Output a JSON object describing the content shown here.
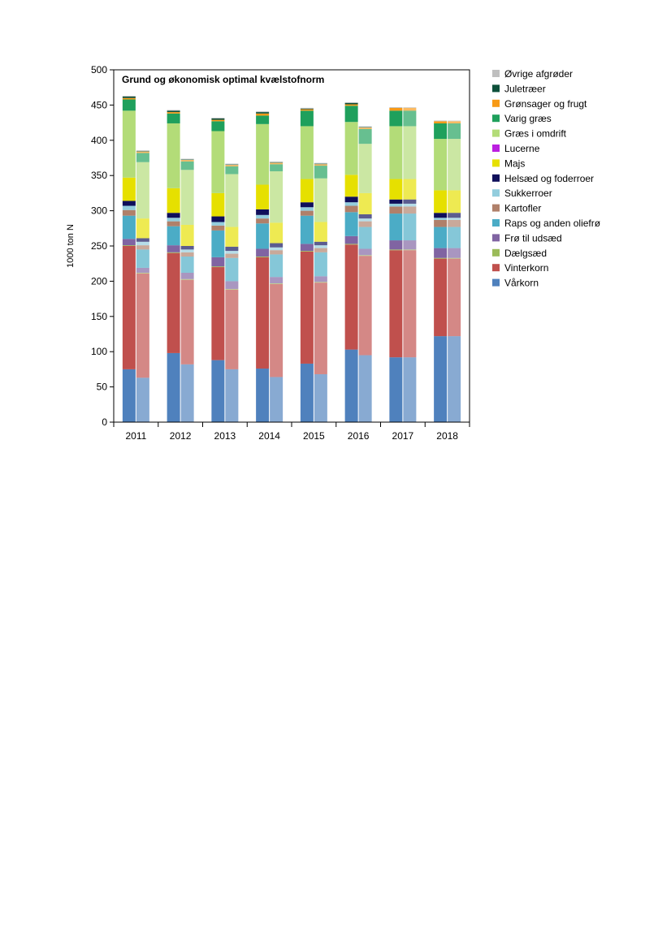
{
  "chart_data": {
    "type": "bar",
    "title": "Grund og økonomisk optimal kvælstofnorm",
    "ylabel": "1000 ton N",
    "xlabel": "",
    "ylim": [
      0,
      500
    ],
    "yticks": [
      0,
      50,
      100,
      150,
      200,
      250,
      300,
      350,
      400,
      450,
      500
    ],
    "grid": false,
    "legend_position": "right",
    "categories": [
      "2011",
      "2012",
      "2013",
      "2014",
      "2015",
      "2016",
      "2017",
      "2018"
    ],
    "series": [
      {
        "name": "Vårkorn",
        "color": "#4f81bd",
        "grund": [
          75,
          98,
          88,
          76,
          83,
          103,
          92,
          122
        ],
        "optimal": [
          63,
          82,
          75,
          64,
          68,
          95,
          92,
          122
        ]
      },
      {
        "name": "Vinterkorn",
        "color": "#c0504d",
        "grund": [
          175,
          142,
          132,
          158,
          159,
          149,
          152,
          110
        ],
        "optimal": [
          148,
          120,
          113,
          132,
          130,
          141,
          152,
          110
        ]
      },
      {
        "name": "Dælgsæd",
        "color": "#9bbb59",
        "grund": [
          1,
          1,
          1,
          1,
          1,
          1,
          1,
          1
        ],
        "optimal": [
          1,
          1,
          1,
          1,
          1,
          1,
          1,
          1
        ]
      },
      {
        "name": "Frø til udsæd",
        "color": "#8064a2",
        "grund": [
          9,
          10,
          13,
          11,
          10,
          11,
          13,
          14
        ],
        "optimal": [
          7,
          9,
          11,
          9,
          8,
          9,
          13,
          14
        ]
      },
      {
        "name": "Raps og anden oliefrø",
        "color": "#4bacc6",
        "grund": [
          33,
          27,
          38,
          36,
          40,
          34,
          38,
          30
        ],
        "optimal": [
          26,
          23,
          33,
          32,
          34,
          31,
          38,
          30
        ]
      },
      {
        "name": "Kartofler",
        "color": "#b0806a",
        "grund": [
          8,
          7,
          7,
          7,
          7,
          9,
          10,
          10
        ],
        "optimal": [
          6,
          6,
          6,
          6,
          6,
          8,
          10,
          10
        ]
      },
      {
        "name": "Sukkerroer",
        "color": "#93cddd",
        "grund": [
          6,
          5,
          5,
          5,
          5,
          5,
          4,
          3
        ],
        "optimal": [
          5,
          4,
          4,
          4,
          4,
          4,
          4,
          3
        ]
      },
      {
        "name": "Helsæd og foderroer",
        "color": "#0f0f5a",
        "grund": [
          7,
          7,
          8,
          8,
          7,
          8,
          6,
          7
        ],
        "optimal": [
          5,
          5,
          6,
          6,
          5,
          6,
          6,
          7
        ]
      },
      {
        "name": "Majs",
        "color": "#e6e000",
        "grund": [
          33,
          35,
          33,
          35,
          33,
          31,
          29,
          32
        ],
        "optimal": [
          28,
          30,
          28,
          29,
          28,
          30,
          29,
          32
        ]
      },
      {
        "name": "Lucerne",
        "color": "#bb1fe0",
        "grund": [
          0,
          0,
          0,
          0,
          0,
          0,
          0,
          0
        ],
        "optimal": [
          0,
          0,
          0,
          0,
          0,
          0,
          0,
          0
        ]
      },
      {
        "name": "Græs i omdrift",
        "color": "#b3dc78",
        "grund": [
          95,
          92,
          88,
          86,
          75,
          75,
          75,
          73
        ],
        "optimal": [
          80,
          78,
          75,
          73,
          62,
          70,
          75,
          73
        ]
      },
      {
        "name": "Varig græs",
        "color": "#1fa05c",
        "grund": [
          16,
          14,
          14,
          12,
          22,
          23,
          22,
          22
        ],
        "optimal": [
          13,
          12,
          11,
          10,
          18,
          21,
          22,
          22
        ]
      },
      {
        "name": "Grønsager og frugt",
        "color": "#f79a16",
        "grund": [
          2,
          2,
          2,
          3,
          2,
          2,
          4,
          3
        ],
        "optimal": [
          2,
          2,
          2,
          2,
          2,
          2,
          4,
          3
        ]
      },
      {
        "name": "Juletræer",
        "color": "#0d503a",
        "grund": [
          2,
          2,
          2,
          2,
          1,
          2,
          0,
          0
        ],
        "optimal": [
          1,
          1,
          1,
          1,
          1,
          1,
          0,
          0
        ]
      },
      {
        "name": "Øvrige afgrøder",
        "color": "#bfbfbf",
        "grund": [
          1,
          1,
          1,
          1,
          1,
          1,
          1,
          1
        ],
        "optimal": [
          1,
          1,
          1,
          1,
          1,
          1,
          1,
          1
        ]
      }
    ]
  }
}
